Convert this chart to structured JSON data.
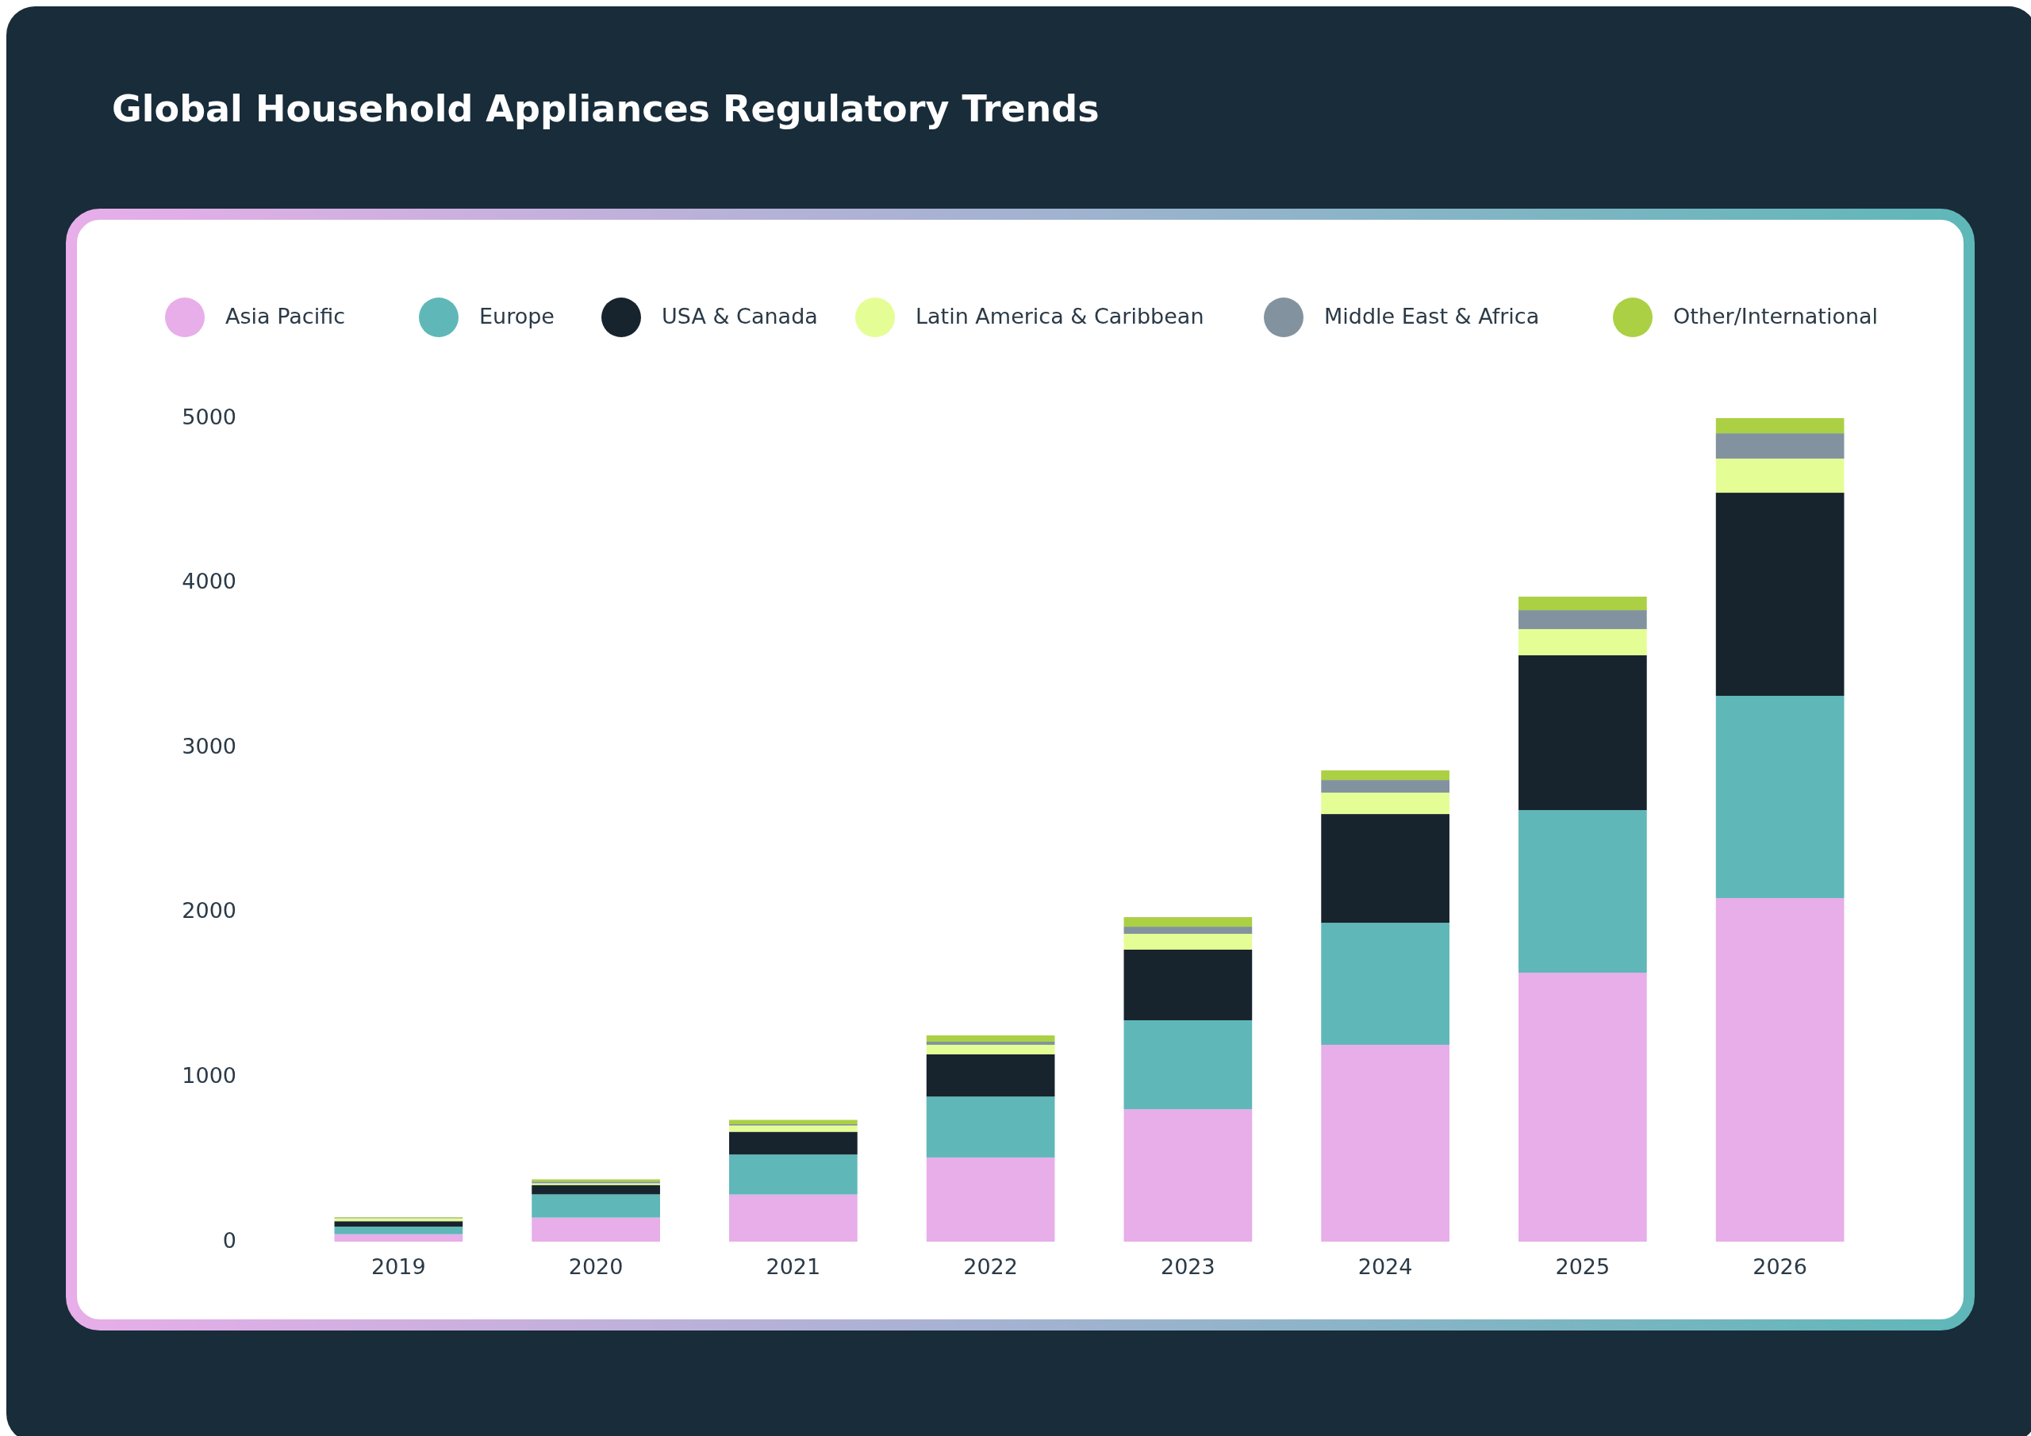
{
  "chart_data": {
    "type": "bar",
    "title": "Global Household Appliances Regulatory Trends",
    "stacked": true,
    "legend": "top",
    "grid": false,
    "categories": [
      "2019",
      "2020",
      "2021",
      "2022",
      "2023",
      "2024",
      "2025",
      "2026"
    ],
    "ylim": [
      0,
      5000
    ],
    "yticks": [
      0,
      1000,
      2000,
      3000,
      4000,
      5000
    ],
    "series": [
      {
        "name": "Asia Pacific",
        "color": "#e7aee9",
        "values": [
          45,
          146,
          286,
          511,
          804,
          1195,
          1633,
          2086
        ]
      },
      {
        "name": "Europe",
        "color": "#5fb7b8",
        "values": [
          46,
          141,
          243,
          370,
          540,
          741,
          987,
          1228
        ]
      },
      {
        "name": "USA & Canada",
        "color": "#18242d",
        "values": [
          33,
          57,
          138,
          256,
          429,
          660,
          940,
          1233
        ]
      },
      {
        "name": "Latin America & Caribbean",
        "color": "#e5fd95",
        "values": [
          18,
          10,
          38,
          58,
          96,
          130,
          159,
          207
        ]
      },
      {
        "name": "Middle East & Africa",
        "color": "#82939f",
        "values": [
          4,
          11,
          8,
          19,
          43,
          77,
          115,
          154
        ]
      },
      {
        "name": "Other/International",
        "color": "#abd044",
        "values": [
          3,
          13,
          26,
          38,
          58,
          58,
          82,
          92
        ]
      }
    ]
  }
}
